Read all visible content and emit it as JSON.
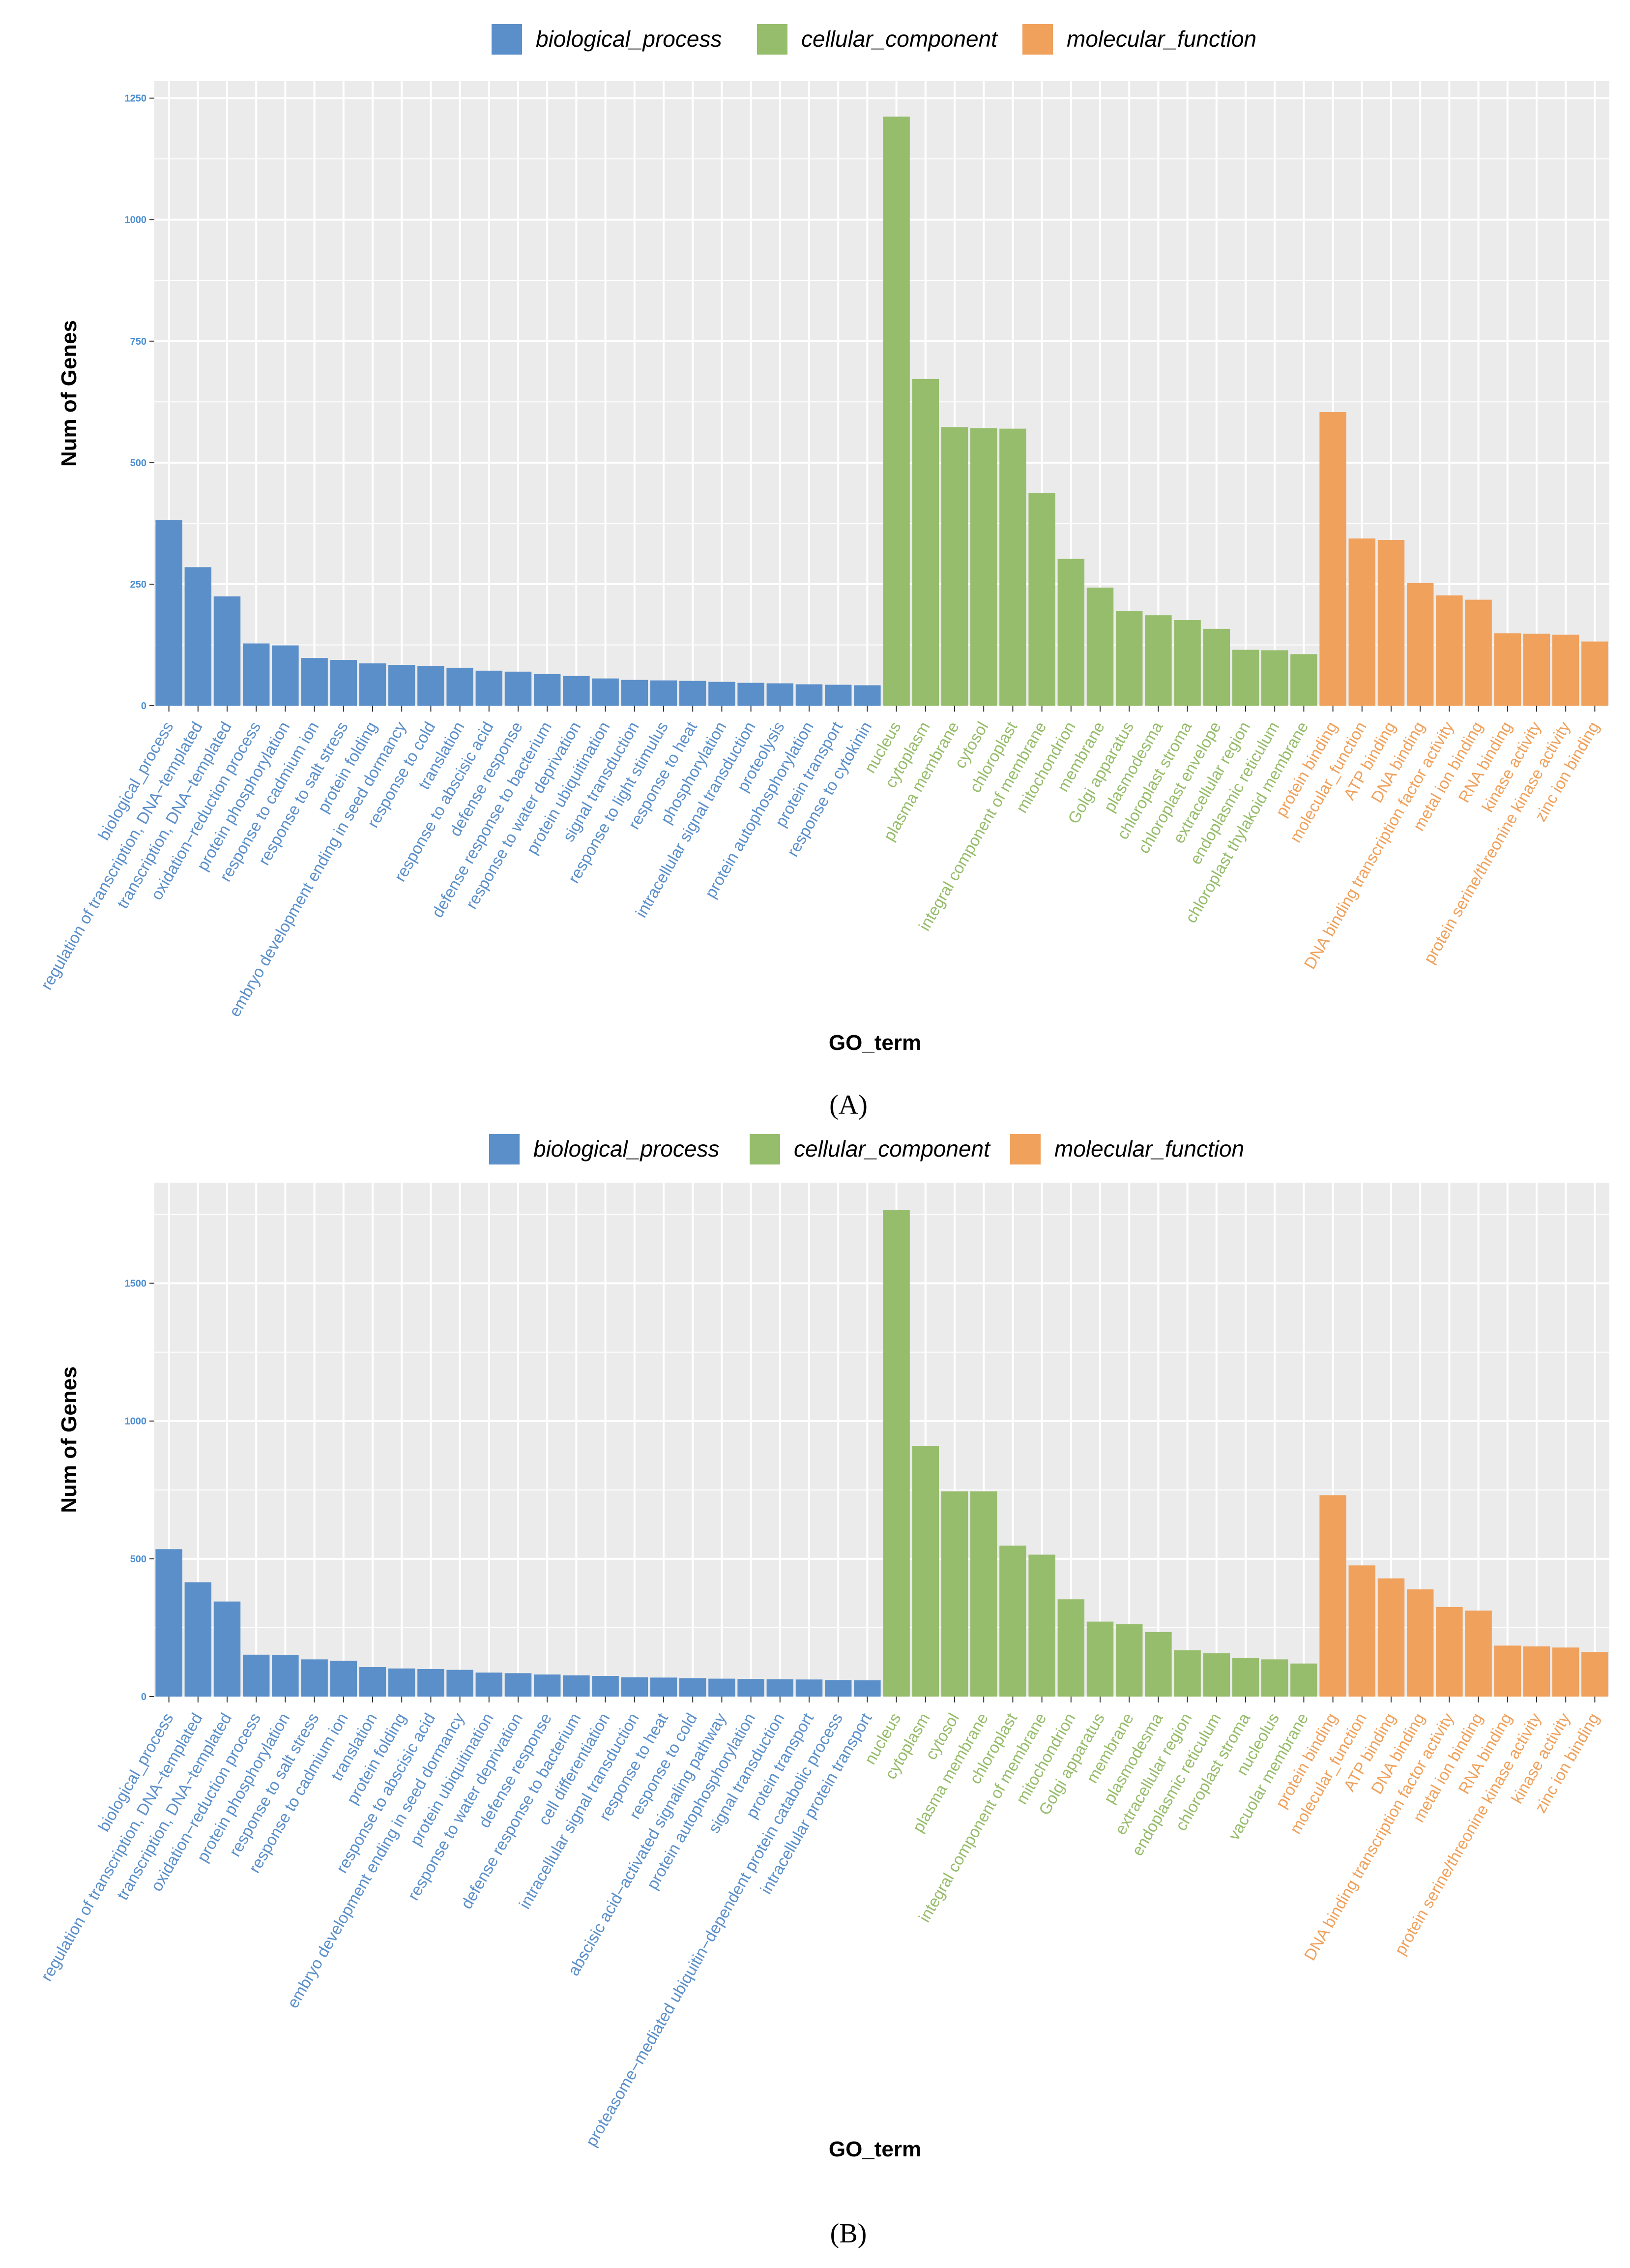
{
  "colors": {
    "biological_process": "#5b8fc9",
    "cellular_component": "#96bd6b",
    "molecular_function": "#f0a15c",
    "panel_bg": "#ebebeb",
    "grid": "#ffffff"
  },
  "chart_data": [
    {
      "type": "bar",
      "panel_label": "(A)",
      "xlabel": "GO_term",
      "ylabel": "Num of Genes",
      "ylim": [
        0,
        1250
      ],
      "yticks": [
        0,
        250,
        500,
        750,
        1000,
        1250
      ],
      "legend": [
        {
          "key": "biological_process",
          "label": "biological_process"
        },
        {
          "key": "cellular_component",
          "label": "cellular_component"
        },
        {
          "key": "molecular_function",
          "label": "molecular_function"
        }
      ],
      "categories": [
        "biological_process",
        "regulation of transcription, DNA−templated",
        "transcription, DNA−templated",
        "oxidation−reduction process",
        "protein phosphorylation",
        "response to cadmium ion",
        "response to salt stress",
        "protein folding",
        "embryo development ending in seed dormancy",
        "response to cold",
        "translation",
        "response to abscisic acid",
        "defense response",
        "defense response to bacterium",
        "response to water deprivation",
        "protein ubiquitination",
        "signal transduction",
        "response to light stimulus",
        "response to heat",
        "phosphorylation",
        "intracellular signal transduction",
        "proteolysis",
        "protein autophosphorylation",
        "protein transport",
        "response to cytokinin",
        "nucleus",
        "cytoplasm",
        "plasma membrane",
        "cytosol",
        "chloroplast",
        "integral component of membrane",
        "mitochondrion",
        "membrane",
        "Golgi apparatus",
        "plasmodesma",
        "chloroplast stroma",
        "chloroplast envelope",
        "extracellular region",
        "endoplasmic reticulum",
        "chloroplast thylakoid membrane",
        "protein binding",
        "molecular_function",
        "ATP binding",
        "DNA binding",
        "DNA binding transcription factor activity",
        "metal ion binding",
        "RNA binding",
        "kinase activity",
        "protein serine/threonine kinase activity",
        "zinc ion binding"
      ],
      "groups": [
        "biological_process",
        "biological_process",
        "biological_process",
        "biological_process",
        "biological_process",
        "biological_process",
        "biological_process",
        "biological_process",
        "biological_process",
        "biological_process",
        "biological_process",
        "biological_process",
        "biological_process",
        "biological_process",
        "biological_process",
        "biological_process",
        "biological_process",
        "biological_process",
        "biological_process",
        "biological_process",
        "biological_process",
        "biological_process",
        "biological_process",
        "biological_process",
        "biological_process",
        "cellular_component",
        "cellular_component",
        "cellular_component",
        "cellular_component",
        "cellular_component",
        "cellular_component",
        "cellular_component",
        "cellular_component",
        "cellular_component",
        "cellular_component",
        "cellular_component",
        "cellular_component",
        "cellular_component",
        "cellular_component",
        "cellular_component",
        "molecular_function",
        "molecular_function",
        "molecular_function",
        "molecular_function",
        "molecular_function",
        "molecular_function",
        "molecular_function",
        "molecular_function",
        "molecular_function",
        "molecular_function"
      ],
      "values": [
        382,
        285,
        225,
        128,
        124,
        98,
        94,
        87,
        84,
        82,
        78,
        72,
        70,
        65,
        61,
        56,
        53,
        52,
        51,
        49,
        47,
        46,
        44,
        43,
        42,
        1212,
        672,
        573,
        571,
        570,
        438,
        302,
        243,
        195,
        186,
        176,
        158,
        115,
        114,
        106,
        604,
        344,
        341,
        252,
        227,
        218,
        149,
        148,
        146,
        132
      ]
    },
    {
      "type": "bar",
      "panel_label": "(B)",
      "xlabel": "GO_term",
      "ylabel": "Num of Genes",
      "ylim": [
        0,
        1800
      ],
      "yticks": [
        0,
        500,
        1000,
        1500
      ],
      "legend": [
        {
          "key": "biological_process",
          "label": "biological_process"
        },
        {
          "key": "cellular_component",
          "label": "cellular_component"
        },
        {
          "key": "molecular_function",
          "label": "molecular_function"
        }
      ],
      "categories": [
        "biological_process",
        "regulation of transcription, DNA−templated",
        "transcription, DNA−templated",
        "oxidation−reduction process",
        "protein phosphorylation",
        "response to salt stress",
        "response to cadmium ion",
        "translation",
        "protein folding",
        "response to abscisic acid",
        "embryo development ending in seed dormancy",
        "protein ubiquitination",
        "response to water deprivation",
        "defense response",
        "defense response to bacterium",
        "cell differentiation",
        "intracellular signal transduction",
        "response to heat",
        "response to cold",
        "abscisic acid−activated signaling pathway",
        "protein autophosphorylation",
        "signal transduction",
        "protein transport",
        "proteasome−mediated ubiquitin−dependent protein catabolic process",
        "intracellular protein transport",
        "nucleus",
        "cytoplasm",
        "cytosol",
        "plasma membrane",
        "chloroplast",
        "integral component of membrane",
        "mitochondrion",
        "Golgi apparatus",
        "membrane",
        "plasmodesma",
        "extracellular region",
        "endoplasmic reticulum",
        "chloroplast stroma",
        "nucleolus",
        "vacuolar membrane",
        "protein binding",
        "molecular_function",
        "ATP binding",
        "DNA binding",
        "DNA binding transcription factor activity",
        "metal ion binding",
        "RNA binding",
        "protein serine/threonine kinase activity",
        "kinase activity",
        "zinc ion binding"
      ],
      "groups": [
        "biological_process",
        "biological_process",
        "biological_process",
        "biological_process",
        "biological_process",
        "biological_process",
        "biological_process",
        "biological_process",
        "biological_process",
        "biological_process",
        "biological_process",
        "biological_process",
        "biological_process",
        "biological_process",
        "biological_process",
        "biological_process",
        "biological_process",
        "biological_process",
        "biological_process",
        "biological_process",
        "biological_process",
        "biological_process",
        "biological_process",
        "biological_process",
        "biological_process",
        "cellular_component",
        "cellular_component",
        "cellular_component",
        "cellular_component",
        "cellular_component",
        "cellular_component",
        "cellular_component",
        "cellular_component",
        "cellular_component",
        "cellular_component",
        "cellular_component",
        "cellular_component",
        "cellular_component",
        "cellular_component",
        "cellular_component",
        "molecular_function",
        "molecular_function",
        "molecular_function",
        "molecular_function",
        "molecular_function",
        "molecular_function",
        "molecular_function",
        "molecular_function",
        "molecular_function",
        "molecular_function"
      ],
      "values": [
        535,
        415,
        345,
        152,
        150,
        135,
        130,
        107,
        102,
        100,
        97,
        87,
        85,
        80,
        77,
        75,
        70,
        69,
        67,
        65,
        64,
        63,
        62,
        60,
        59,
        1765,
        910,
        745,
        745,
        548,
        515,
        353,
        272,
        263,
        234,
        168,
        157,
        140,
        135,
        120,
        731,
        476,
        429,
        389,
        325,
        312,
        185,
        182,
        178,
        162
      ]
    }
  ]
}
